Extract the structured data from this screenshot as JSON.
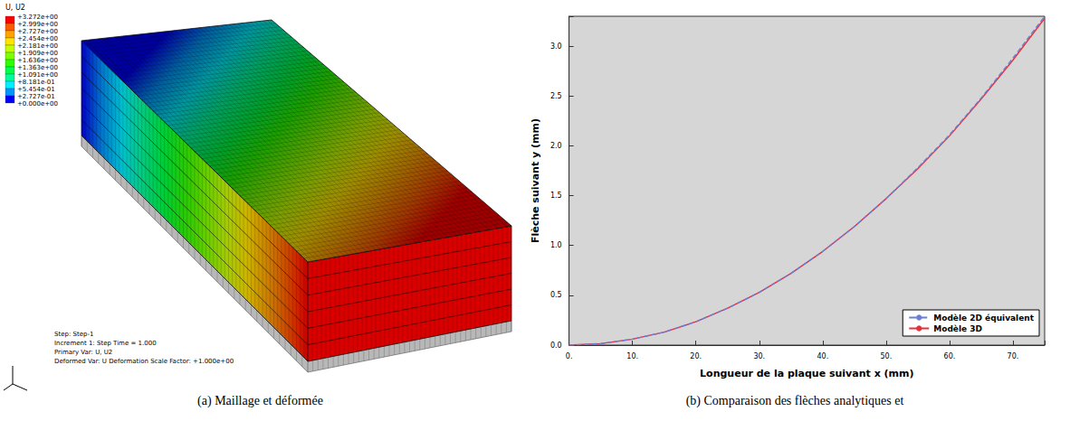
{
  "figure": {
    "panel_a": {
      "caption": "(a) Maillage et déformée",
      "legend_title": "U, U2",
      "legend_labels": [
        "+3.272e+00",
        "+2.999e+00",
        "+2.727e+00",
        "+2.454e+00",
        "+2.181e+00",
        "+1.909e+00",
        "+1.636e+00",
        "+1.363e+00",
        "+1.091e+00",
        "+8.181e-01",
        "+5.454e-01",
        "+2.727e-01",
        "+0.000e+00"
      ],
      "legend_colors": [
        "#ff0000",
        "#ff5a00",
        "#ffa300",
        "#ffe400",
        "#c8ff00",
        "#7cff00",
        "#2cff00",
        "#00ff46",
        "#00ff9a",
        "#00f0ff",
        "#0096ff",
        "#0000ff"
      ],
      "info_lines": [
        "Step: Step-1",
        "Increment 1: Step Time = 1.000",
        "Primary Var: U, U2",
        "Deformed Var: U   Deformation Scale Factor: +1.000e+00"
      ]
    },
    "panel_b": {
      "caption": "(b) Comparaison des flèches analytiques et"
    }
  },
  "chart_data": {
    "type": "line",
    "x_label": "Longueur de la plaque suivant x (mm)",
    "y_label": "Flèche suivant y (mm)",
    "x": [
      0,
      5,
      10,
      15,
      20,
      25,
      30,
      35,
      40,
      45,
      50,
      55,
      60,
      65,
      70,
      75
    ],
    "series": [
      {
        "name": "Modèle 2D équivalent",
        "color": "#6a7fd8",
        "line_style": "dashed",
        "marker": "none",
        "values": [
          0,
          0.015,
          0.06,
          0.13,
          0.235,
          0.37,
          0.53,
          0.72,
          0.94,
          1.19,
          1.47,
          1.78,
          2.11,
          2.48,
          2.88,
          3.3
        ]
      },
      {
        "name": "Modèle 3D",
        "color": "#e8303a",
        "line_style": "solid",
        "marker": "none",
        "values": [
          0,
          0.015,
          0.06,
          0.13,
          0.235,
          0.37,
          0.53,
          0.72,
          0.94,
          1.19,
          1.47,
          1.77,
          2.1,
          2.47,
          2.86,
          3.28
        ]
      }
    ],
    "xlim": [
      0,
      75
    ],
    "xticks": [
      {
        "value": 0,
        "label": "0."
      },
      {
        "value": 10,
        "label": "10."
      },
      {
        "value": 20,
        "label": "20."
      },
      {
        "value": 30,
        "label": "30."
      },
      {
        "value": 40,
        "label": "40."
      },
      {
        "value": 50,
        "label": "50."
      },
      {
        "value": 60,
        "label": "60."
      },
      {
        "value": 70,
        "label": "70."
      }
    ],
    "ylim": [
      0,
      3.3
    ],
    "yticks": [
      {
        "value": 0,
        "label": "0.0"
      },
      {
        "value": 0.5,
        "label": "0.5"
      },
      {
        "value": 1,
        "label": "1.0"
      },
      {
        "value": 1.5,
        "label": "1.5"
      },
      {
        "value": 2,
        "label": "2.0"
      },
      {
        "value": 2.5,
        "label": "2.5"
      },
      {
        "value": 3,
        "label": "3.0"
      }
    ],
    "grid": false,
    "legend": "lower right"
  }
}
